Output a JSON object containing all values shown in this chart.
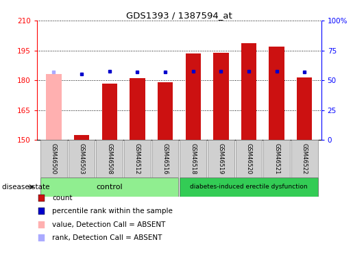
{
  "title": "GDS1393 / 1387594_at",
  "samples": [
    "GSM46500",
    "GSM46503",
    "GSM46508",
    "GSM46512",
    "GSM46516",
    "GSM46518",
    "GSM46519",
    "GSM46520",
    "GSM46521",
    "GSM46522"
  ],
  "count_values": [
    183.0,
    152.5,
    178.5,
    181.0,
    179.0,
    193.5,
    194.0,
    198.5,
    197.0,
    181.5
  ],
  "percentile_values": [
    57.0,
    55.0,
    57.5,
    57.0,
    57.0,
    57.5,
    57.5,
    57.5,
    57.5,
    57.0
  ],
  "absent_flags": [
    true,
    false,
    false,
    false,
    false,
    false,
    false,
    false,
    false,
    false
  ],
  "absent_rank_flags": [
    true,
    false,
    false,
    false,
    false,
    false,
    false,
    false,
    false,
    false
  ],
  "ylim_left": [
    150,
    210
  ],
  "ylim_right": [
    0,
    100
  ],
  "yticks_left": [
    150,
    165,
    180,
    195,
    210
  ],
  "yticks_right": [
    0,
    25,
    50,
    75,
    100
  ],
  "right_tick_labels": [
    "0",
    "25",
    "50",
    "75",
    "100%"
  ],
  "control_group": [
    0,
    1,
    2,
    3,
    4
  ],
  "disease_group": [
    5,
    6,
    7,
    8,
    9
  ],
  "control_label": "control",
  "disease_label": "diabetes-induced erectile dysfunction",
  "group_label": "disease state",
  "bar_color_normal": "#cc1111",
  "bar_color_absent": "#ffb0b0",
  "dot_color_normal": "#0000cc",
  "dot_color_absent": "#aaaaff",
  "bar_width": 0.55,
  "background_color": "#ffffff",
  "plot_bg_color": "#ffffff",
  "control_bg": "#90ee90",
  "disease_bg": "#33cc55",
  "legend_items": [
    "count",
    "percentile rank within the sample",
    "value, Detection Call = ABSENT",
    "rank, Detection Call = ABSENT"
  ],
  "legend_colors": [
    "#cc1111",
    "#0000cc",
    "#ffb0b0",
    "#aaaaff"
  ],
  "base_value": 150
}
